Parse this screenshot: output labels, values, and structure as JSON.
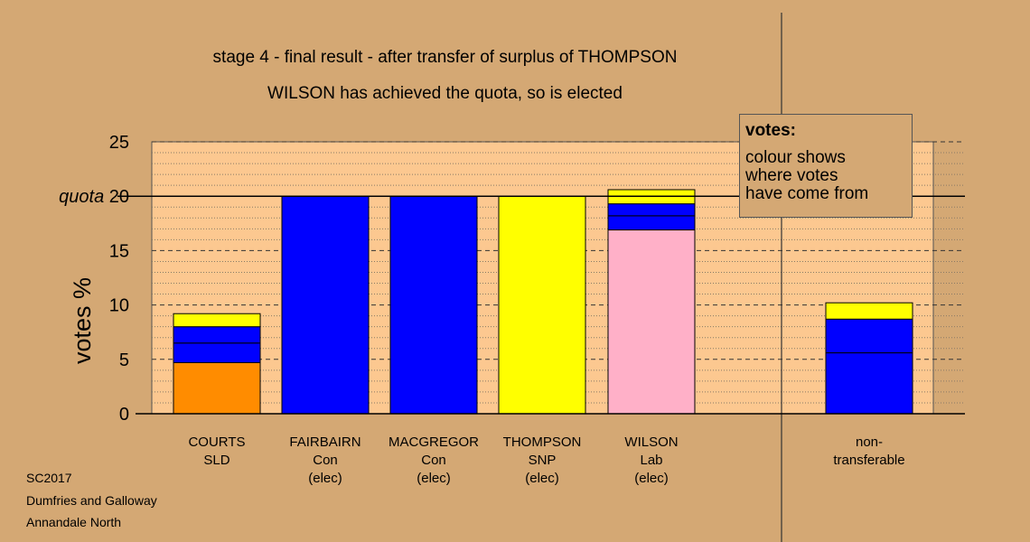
{
  "title_line1": "stage 4 - final result - after transfer of surplus of THOMPSON",
  "title_line2": "WILSON has achieved the quota, so is elected",
  "footer": [
    "SC2017",
    "Dumfries and Galloway",
    "Annandale North"
  ],
  "legend": {
    "title": "votes:",
    "lines": [
      "colour shows",
      "where votes",
      "have come from"
    ]
  },
  "colors": {
    "background": "#d4a874",
    "plot_area": "#fcc890",
    "orange": "#ff8c00",
    "blue": "#0000ff",
    "yellow": "#ffff00",
    "pink": "#ffb0c8"
  },
  "chart_data": {
    "type": "bar",
    "stacked": true,
    "ylabel": "votes %",
    "ylim": [
      0,
      25
    ],
    "yticks": [
      0,
      5,
      10,
      15,
      20,
      25
    ],
    "quota": {
      "value": 20,
      "label": "quota"
    },
    "grid": true,
    "bars": [
      {
        "label_lines": [
          "COURTS",
          "SLD"
        ],
        "segments": [
          {
            "color": "orange",
            "value": 4.7
          },
          {
            "color": "blue",
            "value": 1.8
          },
          {
            "color": "blue",
            "value": 1.5
          },
          {
            "color": "yellow",
            "value": 1.2
          }
        ]
      },
      {
        "label_lines": [
          "FAIRBAIRN",
          "Con",
          "(elec)"
        ],
        "segments": [
          {
            "color": "blue",
            "value": 20
          }
        ]
      },
      {
        "label_lines": [
          "MACGREGOR",
          "Con",
          "(elec)"
        ],
        "segments": [
          {
            "color": "blue",
            "value": 20
          }
        ]
      },
      {
        "label_lines": [
          "THOMPSON",
          "SNP",
          "(elec)"
        ],
        "segments": [
          {
            "color": "yellow",
            "value": 20
          }
        ]
      },
      {
        "label_lines": [
          "WILSON",
          "Lab",
          "(elec)"
        ],
        "segments": [
          {
            "color": "pink",
            "value": 16.9
          },
          {
            "color": "blue",
            "value": 1.3
          },
          {
            "color": "blue",
            "value": 1.1
          },
          {
            "color": "yellow",
            "value": 1.3
          }
        ]
      },
      {
        "label_lines": [
          "non-",
          "transferable"
        ],
        "segments": [
          {
            "color": "blue",
            "value": 5.6
          },
          {
            "color": "blue",
            "value": 3.1
          },
          {
            "color": "yellow",
            "value": 1.5
          }
        ]
      }
    ]
  }
}
